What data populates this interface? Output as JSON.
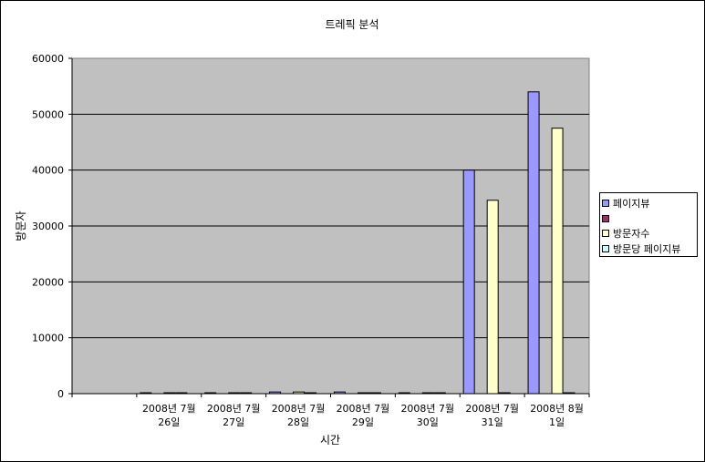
{
  "chart_data": {
    "type": "bar",
    "title": "트레픽 분석",
    "xlabel": "시간",
    "ylabel": "방문자",
    "ylim": [
      0,
      60000
    ],
    "yticks": [
      0,
      10000,
      20000,
      30000,
      40000,
      50000,
      60000
    ],
    "grid": true,
    "legend_position": "right",
    "plot_background": "#c0c0c0",
    "categories": [
      [
        "",
        ""
      ],
      [
        "2008년 7월",
        "26일"
      ],
      [
        "2008년 7월",
        "27일"
      ],
      [
        "2008년 7월",
        "28일"
      ],
      [
        "2008년 7월",
        "29일"
      ],
      [
        "2008년 7월",
        "30일"
      ],
      [
        "2008년 7월",
        "31일"
      ],
      [
        "2008년 8월",
        "1일"
      ]
    ],
    "series": [
      {
        "name": "페이지뷰",
        "color": "#9999ff",
        "values": [
          0,
          150,
          150,
          300,
          300,
          150,
          40000,
          54000
        ]
      },
      {
        "name": "",
        "color": "#993366",
        "values": [
          0,
          0,
          0,
          0,
          0,
          0,
          0,
          0
        ]
      },
      {
        "name": "방문자수",
        "color": "#ffffcc",
        "values": [
          0,
          150,
          150,
          300,
          150,
          150,
          34600,
          47500
        ]
      },
      {
        "name": "방문당 페이지뷰",
        "color": "#ccffff",
        "values": [
          0,
          1,
          1,
          1,
          2,
          1,
          1,
          1
        ]
      }
    ]
  }
}
